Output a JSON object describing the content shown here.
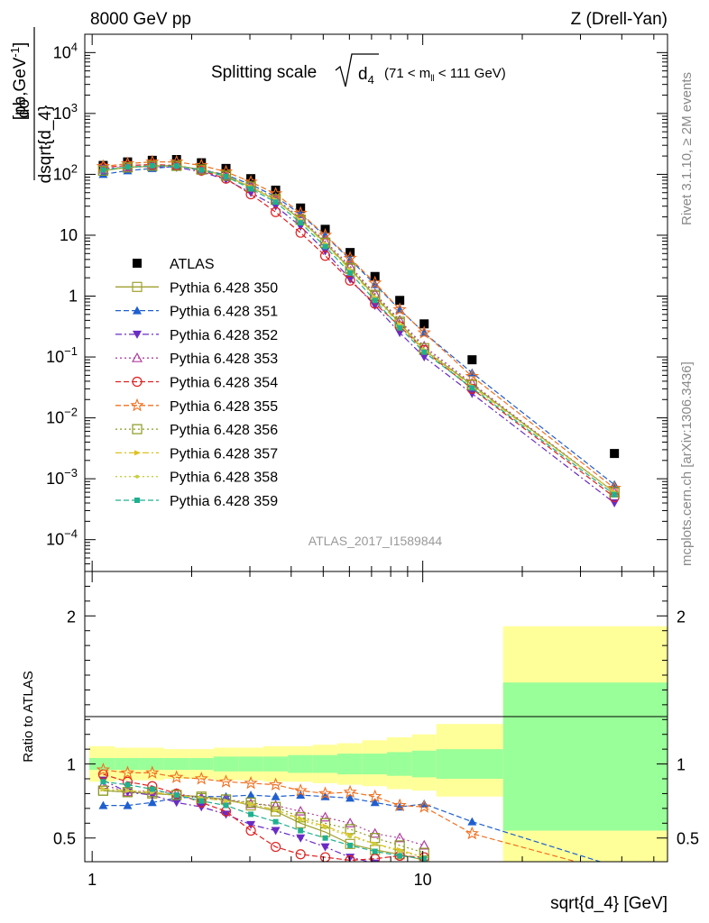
{
  "header": {
    "left": "8000 GeV pp",
    "right": "Z (Drell-Yan)"
  },
  "side_labels": {
    "rivet": "Rivet 3.1.10, ≥ 2M events",
    "mcplots": "mcplots.cern.ch [arXiv:1306.3436]"
  },
  "chart_data": [
    {
      "type": "scatter",
      "title_main": "Splitting scale",
      "title_sqrt": "d",
      "title_sub": "4",
      "title_range": "(71 < m",
      "title_range_sub": "ll",
      "title_range_end": " < 111 GeV)",
      "ylabel_num": "dσ",
      "ylabel_den": "dsqrt{d_4}",
      "ylabel_unit": "[pb,GeV",
      "ylabel_unit_sup": "-1",
      "ylabel_unit_end": "]",
      "yscale": "log",
      "xscale": "log",
      "xlim": [
        0.95,
        55
      ],
      "ylim": [
        3e-05,
        20000
      ],
      "yticks": [
        {
          "v": 10000,
          "base": "10",
          "exp": "4"
        },
        {
          "v": 1000,
          "base": "10",
          "exp": "3"
        },
        {
          "v": 100,
          "base": "10",
          "exp": "2"
        },
        {
          "v": 10,
          "base": "10",
          "exp": ""
        },
        {
          "v": 1,
          "base": "1",
          "exp": ""
        },
        {
          "v": 0.1,
          "base": "10",
          "exp": "−1"
        },
        {
          "v": 0.01,
          "base": "10",
          "exp": "−2"
        },
        {
          "v": 0.001,
          "base": "10",
          "exp": "−3"
        },
        {
          "v": 0.0001,
          "base": "10",
          "exp": "−4"
        }
      ],
      "watermark": "ATLAS_2017_I1589844",
      "legend_position": "middle-left",
      "x": [
        1.08,
        1.28,
        1.52,
        1.8,
        2.14,
        2.54,
        3.02,
        3.59,
        4.27,
        5.07,
        6.03,
        7.17,
        8.52,
        10.1,
        14.1,
        38.0
      ],
      "series": [
        {
          "name": "ATLAS",
          "color": "#000000",
          "marker": "square-filled",
          "dash": "none",
          "values": [
            140,
            160,
            170,
            175,
            155,
            125,
            85,
            55,
            28,
            12.5,
            5.2,
            2.1,
            0.85,
            0.35,
            0.09,
            0.0026
          ]
        },
        {
          "name": "Pythia 6.428 350",
          "color": "#a0a030",
          "marker": "square-open",
          "dash": "solid",
          "values": [
            115,
            130,
            136,
            138,
            120,
            95,
            61,
            38,
            18,
            7.5,
            2.8,
            1.0,
            0.36,
            0.13,
            0.035,
            0.0006
          ]
        },
        {
          "name": "Pythia 6.428 351",
          "color": "#1f5fcf",
          "marker": "triangle-up-filled",
          "dash": "dashed",
          "values": [
            100,
            115,
            125,
            135,
            120,
            98,
            68,
            43,
            22,
            9.8,
            4.0,
            1.55,
            0.6,
            0.25,
            0.055,
            0.0008
          ]
        },
        {
          "name": "Pythia 6.428 352",
          "color": "#6a2bc4",
          "marker": "triangle-down-filled",
          "dash": "dashdot",
          "values": [
            125,
            130,
            135,
            130,
            110,
            82,
            50,
            30,
            14,
            5.5,
            1.9,
            0.7,
            0.25,
            0.1,
            0.025,
            0.0004
          ]
        },
        {
          "name": "Pythia 6.428 353",
          "color": "#b040a0",
          "marker": "triangle-up-open",
          "dash": "dotted",
          "values": [
            120,
            130,
            140,
            140,
            120,
            95,
            62,
            40,
            19,
            8,
            3.1,
            1.1,
            0.4,
            0.15,
            0.037,
            0.0006
          ]
        },
        {
          "name": "Pythia 6.428 354",
          "color": "#e02020",
          "marker": "circle-open",
          "dash": "dashed",
          "values": [
            130,
            140,
            145,
            140,
            115,
            85,
            47,
            24,
            11,
            4.6,
            1.8,
            0.75,
            0.32,
            0.13,
            0.03,
            0.0005
          ]
        },
        {
          "name": "Pythia 6.428 355",
          "color": "#f07020",
          "marker": "star-open",
          "dash": "dashed",
          "values": [
            135,
            150,
            160,
            160,
            140,
            110,
            75,
            48,
            23,
            10,
            4.2,
            1.65,
            0.6,
            0.25,
            0.048,
            0.0007
          ]
        },
        {
          "name": "Pythia 6.428 356",
          "color": "#8a9a20",
          "marker": "square-open",
          "dash": "dotted",
          "values": [
            115,
            130,
            138,
            138,
            120,
            95,
            63,
            39,
            18,
            7.5,
            2.9,
            1.05,
            0.38,
            0.14,
            0.035,
            0.0006
          ]
        },
        {
          "name": "Pythia 6.428 357",
          "color": "#e0c020",
          "marker": "triangle-right",
          "dash": "dashdot",
          "values": [
            118,
            132,
            138,
            138,
            120,
            94,
            62,
            38,
            17.5,
            7.2,
            2.7,
            0.95,
            0.34,
            0.13,
            0.033,
            0.0006
          ]
        },
        {
          "name": "Pythia 6.428 358",
          "color": "#c8d040",
          "marker": "dot",
          "dash": "dotted",
          "values": [
            117,
            131,
            137,
            137,
            119,
            94,
            62,
            38,
            17.5,
            7.2,
            2.7,
            0.95,
            0.34,
            0.13,
            0.033,
            0.0006
          ]
        },
        {
          "name": "Pythia 6.428 359",
          "color": "#20b090",
          "marker": "square-small",
          "dash": "dashed",
          "values": [
            118,
            132,
            138,
            137,
            118,
            92,
            58,
            35,
            16,
            6.5,
            2.4,
            0.85,
            0.3,
            0.12,
            0.031,
            0.00055
          ]
        }
      ]
    },
    {
      "type": "scatter",
      "ylabel": "Ratio to ATLAS",
      "xlabel": "sqrt{d_4} [GeV]",
      "xscale": "log",
      "xlim": [
        0.95,
        55
      ],
      "ylim": [
        0.34,
        2.3
      ],
      "yticks": [
        {
          "v": 0.5,
          "label": "0.5"
        },
        {
          "v": 1,
          "label": "1"
        },
        {
          "v": 2,
          "label": "2"
        }
      ],
      "xticks": [
        {
          "v": 1,
          "label": "1"
        },
        {
          "v": 10,
          "label": "10"
        }
      ],
      "bin_edges": [
        0.98,
        1.17,
        1.39,
        1.65,
        1.96,
        2.33,
        2.77,
        3.29,
        3.91,
        4.65,
        5.52,
        6.57,
        7.8,
        9.28,
        11.0,
        17.5,
        55
      ],
      "band_green": [
        [
          0.96,
          1.04
        ],
        [
          0.96,
          1.04
        ],
        [
          0.96,
          1.04
        ],
        [
          0.96,
          1.04
        ],
        [
          0.96,
          1.04
        ],
        [
          0.95,
          1.05
        ],
        [
          0.95,
          1.05
        ],
        [
          0.95,
          1.05
        ],
        [
          0.94,
          1.06
        ],
        [
          0.94,
          1.06
        ],
        [
          0.93,
          1.07
        ],
        [
          0.93,
          1.07
        ],
        [
          0.92,
          1.08
        ],
        [
          0.91,
          1.09
        ],
        [
          0.9,
          1.1
        ],
        [
          0.55,
          1.55
        ]
      ],
      "band_yellow": [
        [
          0.88,
          1.12
        ],
        [
          0.89,
          1.11
        ],
        [
          0.89,
          1.11
        ],
        [
          0.9,
          1.1
        ],
        [
          0.9,
          1.1
        ],
        [
          0.89,
          1.11
        ],
        [
          0.89,
          1.11
        ],
        [
          0.88,
          1.12
        ],
        [
          0.88,
          1.12
        ],
        [
          0.87,
          1.13
        ],
        [
          0.86,
          1.14
        ],
        [
          0.85,
          1.16
        ],
        [
          0.83,
          1.18
        ],
        [
          0.82,
          1.2
        ],
        [
          0.78,
          1.27
        ],
        [
          0.34,
          1.93
        ]
      ],
      "x": [
        1.08,
        1.28,
        1.52,
        1.8,
        2.14,
        2.54,
        3.02,
        3.59,
        4.27,
        5.07,
        6.03,
        7.17,
        8.52,
        10.1,
        14.1,
        38.0
      ],
      "series": [
        {
          "name": "Pythia 6.428 350",
          "values": [
            0.82,
            0.81,
            0.8,
            0.79,
            0.78,
            0.76,
            0.72,
            0.68,
            0.6,
            0.54,
            0.46,
            0.42,
            0.39,
            0.35,
            null,
            null
          ]
        },
        {
          "name": "Pythia 6.428 351",
          "values": [
            0.72,
            0.72,
            0.74,
            0.77,
            0.78,
            0.78,
            0.79,
            0.78,
            0.79,
            0.78,
            0.77,
            0.74,
            0.71,
            0.73,
            0.61,
            0.31
          ]
        },
        {
          "name": "Pythia 6.428 352",
          "values": [
            0.89,
            0.81,
            0.79,
            0.74,
            0.71,
            0.66,
            0.59,
            0.55,
            0.5,
            0.44,
            0.37,
            0.33,
            0.29,
            0.28,
            null,
            null
          ]
        },
        {
          "name": "Pythia 6.428 353",
          "values": [
            0.86,
            0.81,
            0.82,
            0.8,
            0.77,
            0.76,
            0.73,
            0.72,
            0.68,
            0.64,
            0.6,
            0.53,
            0.5,
            0.45,
            null,
            null
          ]
        },
        {
          "name": "Pythia 6.428 354",
          "values": [
            0.93,
            0.88,
            0.85,
            0.8,
            0.74,
            0.68,
            0.55,
            0.44,
            0.39,
            0.37,
            0.35,
            0.36,
            0.38,
            0.37,
            null,
            null
          ]
        },
        {
          "name": "Pythia 6.428 355",
          "values": [
            0.96,
            0.94,
            0.94,
            0.91,
            0.9,
            0.88,
            0.87,
            0.86,
            0.82,
            0.8,
            0.81,
            0.78,
            0.72,
            0.71,
            0.53,
            0.27
          ]
        },
        {
          "name": "Pythia 6.428 356",
          "values": [
            0.82,
            0.81,
            0.81,
            0.79,
            0.77,
            0.76,
            0.74,
            0.71,
            0.64,
            0.6,
            0.56,
            0.5,
            0.45,
            0.4,
            null,
            null
          ]
        },
        {
          "name": "Pythia 6.428 357",
          "values": [
            0.83,
            0.82,
            0.81,
            0.79,
            0.77,
            0.75,
            0.73,
            0.69,
            0.63,
            0.58,
            0.52,
            0.46,
            0.42,
            0.37,
            null,
            null
          ]
        },
        {
          "name": "Pythia 6.428 358",
          "values": [
            0.83,
            0.82,
            0.81,
            0.79,
            0.77,
            0.75,
            0.73,
            0.69,
            0.62,
            0.57,
            0.51,
            0.46,
            0.41,
            0.37,
            null,
            null
          ]
        },
        {
          "name": "Pythia 6.428 359",
          "values": [
            0.88,
            0.86,
            0.83,
            0.79,
            0.75,
            0.72,
            0.66,
            0.61,
            0.55,
            0.5,
            0.45,
            0.41,
            0.38,
            0.36,
            null,
            null
          ]
        }
      ]
    }
  ]
}
